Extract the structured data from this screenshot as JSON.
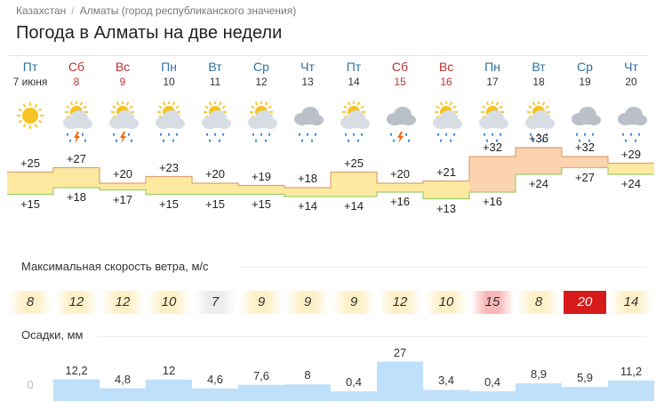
{
  "breadcrumb": {
    "items": [
      "Казахстан",
      "Алматы (город республиканского значения)"
    ],
    "sep": "/"
  },
  "title": "Погода в Алматы на две недели",
  "days": [
    {
      "name": "Пт",
      "date": "7 июня",
      "weekend": false,
      "icon": "sun-icon",
      "tmax": "+25",
      "tmin": "+15",
      "wind": "8",
      "precip": "0"
    },
    {
      "name": "Сб",
      "date": "8",
      "weekend": true,
      "icon": "sun-cloud-storm-icon",
      "tmax": "+27",
      "tmin": "+18",
      "wind": "12",
      "precip": "12,2"
    },
    {
      "name": "Вс",
      "date": "9",
      "weekend": true,
      "icon": "sun-cloud-storm-icon",
      "tmax": "+20",
      "tmin": "+17",
      "wind": "12",
      "precip": "4,8"
    },
    {
      "name": "Пн",
      "date": "10",
      "weekend": false,
      "icon": "sun-cloud-rain-icon",
      "tmax": "+23",
      "tmin": "+15",
      "wind": "10",
      "precip": "12"
    },
    {
      "name": "Вт",
      "date": "11",
      "weekend": false,
      "icon": "sun-cloud-rain-icon",
      "tmax": "+20",
      "tmin": "+15",
      "wind": "7",
      "precip": "4,6"
    },
    {
      "name": "Ср",
      "date": "12",
      "weekend": false,
      "icon": "sun-cloud-rain-icon",
      "tmax": "+19",
      "tmin": "+15",
      "wind": "9",
      "precip": "7,6"
    },
    {
      "name": "Чт",
      "date": "13",
      "weekend": false,
      "icon": "cloud-rain-icon",
      "tmax": "+18",
      "tmin": "+14",
      "wind": "9",
      "precip": "8"
    },
    {
      "name": "Пт",
      "date": "14",
      "weekend": false,
      "icon": "sun-cloud-rain-icon",
      "tmax": "+25",
      "tmin": "+14",
      "wind": "9",
      "precip": "0,4"
    },
    {
      "name": "Сб",
      "date": "15",
      "weekend": true,
      "icon": "cloud-storm-icon",
      "tmax": "+20",
      "tmin": "+16",
      "wind": "12",
      "precip": "27"
    },
    {
      "name": "Вс",
      "date": "16",
      "weekend": true,
      "icon": "sun-cloud-rain-icon",
      "tmax": "+21",
      "tmin": "+13",
      "wind": "10",
      "precip": "3,4"
    },
    {
      "name": "Пн",
      "date": "17",
      "weekend": false,
      "icon": "sun-cloud-rain-icon",
      "tmax": "+32",
      "tmin": "+16",
      "wind": "15",
      "precip": "0,4"
    },
    {
      "name": "Вт",
      "date": "18",
      "weekend": false,
      "icon": "sun-cloud-rain-icon",
      "tmax": "+36",
      "tmin": "+24",
      "wind": "8",
      "precip": "8,9"
    },
    {
      "name": "Ср",
      "date": "19",
      "weekend": false,
      "icon": "cloud-rain-icon",
      "tmax": "+32",
      "tmin": "+27",
      "wind": "20",
      "precip": "5,9"
    },
    {
      "name": "Чт",
      "date": "20",
      "weekend": false,
      "icon": "cloud-rain-icon",
      "tmax": "+29",
      "tmin": "+24",
      "wind": "14",
      "precip": "11,2"
    }
  ],
  "wind_section": {
    "label": "Максимальная скорость ветра, м/с"
  },
  "precip_section": {
    "label": "Осадки, мм"
  },
  "colors": {
    "sun": "#f7c322",
    "cloud": "#b9c0c7",
    "rain": "#2a7fd4",
    "bolt": "#ef6b1a",
    "temp_warm": "#fdeaa0",
    "temp_hot": "#fbd3b0",
    "precip_bar": "#bfe0fb",
    "wind_normal": "#fdf0c6",
    "wind_calm": "#ececec",
    "wind_strong": "#f8b7b7",
    "wind_extreme": "#d71b1b"
  }
}
